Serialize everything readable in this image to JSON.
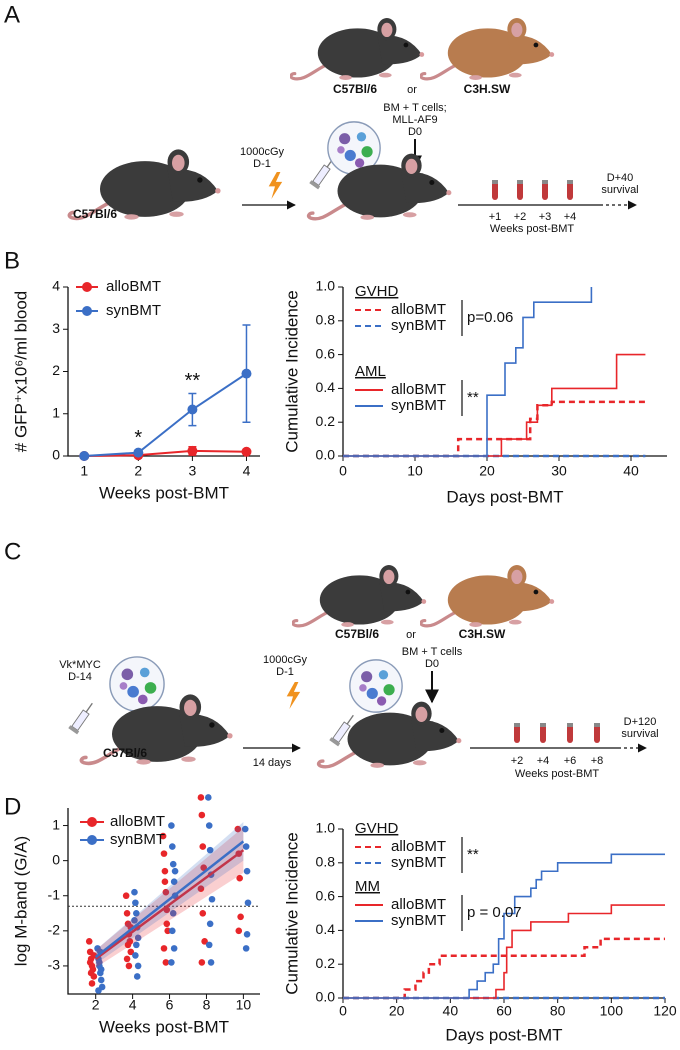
{
  "panel_labels": [
    "A",
    "B",
    "C",
    "D"
  ],
  "diagram_a": {
    "strains": [
      "C57Bl/6",
      "C3H.SW"
    ],
    "or": "or",
    "recipient": "C57Bl/6",
    "irradiation": [
      "1000cGy",
      "D-1"
    ],
    "transplant": [
      "BM + T cells;",
      "MLL-AF9",
      "D0"
    ],
    "timepoints": [
      "+1",
      "+2",
      "+3",
      "+4"
    ],
    "timeline_label": "Weeks post-BMT",
    "endpoint": [
      "D+40",
      "survival"
    ]
  },
  "diagram_c": {
    "strains": [
      "C57Bl/6",
      "C3H.SW"
    ],
    "or": "or",
    "inoculum": [
      "Vk*MYC",
      "D-14"
    ],
    "recipient": "C57Bl/6",
    "interval": "14 days",
    "irradiation": [
      "1000cGy",
      "D-1"
    ],
    "transplant": [
      "BM + T cells",
      "D0"
    ],
    "timepoints": [
      "+2",
      "+4",
      "+6",
      "+8"
    ],
    "timeline_label": "Weeks post-BMT",
    "endpoint": [
      "D+120",
      "survival"
    ]
  },
  "chart_data": [
    {
      "type": "line",
      "ylabel": "# GFP⁺x10⁶/ml blood",
      "xlabel": "Weeks post-BMT",
      "x": [
        1,
        2,
        3,
        4
      ],
      "xlim": [
        0.7,
        4.25
      ],
      "xticks": [
        1,
        2,
        3,
        4
      ],
      "ylim": [
        0,
        4
      ],
      "yticks": [
        0,
        1,
        2,
        3,
        4
      ],
      "legend": "upper left",
      "series": [
        {
          "name": "alloBMT",
          "color": "#e8262a",
          "values": [
            0,
            0.02,
            0.12,
            0.1
          ],
          "errors": [
            0,
            0.03,
            0.1,
            0.05
          ]
        },
        {
          "name": "synBMT",
          "color": "#3b6fc6",
          "values": [
            0,
            0.08,
            1.1,
            1.95
          ],
          "errors": [
            0,
            0.04,
            0.38,
            1.15
          ]
        }
      ],
      "annotations": [
        {
          "x": 2,
          "text": "*"
        },
        {
          "x": 3,
          "text": "**"
        }
      ]
    },
    {
      "type": "step",
      "ylabel": "Cumulative Incidence",
      "xlabel": "Days post-BMT",
      "xlim": [
        0,
        45
      ],
      "xticks": [
        0,
        10,
        20,
        30,
        40
      ],
      "ylim": [
        0,
        1
      ],
      "yticks": [
        {
          "value": 0,
          "label": "0.0"
        },
        0.2,
        0.4,
        0.6,
        0.8,
        {
          "value": 1,
          "label": "1.0"
        }
      ],
      "legend": "upper left",
      "groups": [
        {
          "title": "GVHD",
          "stat": "p=0.06",
          "series": [
            {
              "name": "alloBMT",
              "color": "#e8262a",
              "linestyle": "dashed",
              "x": [
                0,
                16,
                26,
                27,
                29,
                42
              ],
              "values": [
                0,
                0.1,
                0.22,
                0.3,
                0.32,
                0.32
              ]
            },
            {
              "name": "synBMT",
              "color": "#3b6fc6",
              "linestyle": "dashed",
              "x": [
                0,
                42
              ],
              "values": [
                0,
                0
              ]
            }
          ]
        },
        {
          "title": "AML",
          "stat": "**",
          "series": [
            {
              "name": "alloBMT",
              "color": "#e8262a",
              "linestyle": "solid",
              "x": [
                0,
                22,
                25.5,
                27,
                29,
                38,
                42
              ],
              "values": [
                0,
                0.1,
                0.2,
                0.3,
                0.4,
                0.6,
                0.6
              ]
            },
            {
              "name": "synBMT",
              "color": "#3b6fc6",
              "linestyle": "solid",
              "x": [
                0,
                20,
                22.5,
                24,
                25,
                26.5,
                34.5
              ],
              "values": [
                0,
                0.36,
                0.55,
                0.64,
                0.82,
                0.91,
                1.0
              ]
            }
          ]
        }
      ]
    },
    {
      "type": "scatter",
      "ylabel": "log M-band (G/A)",
      "xlabel": "Weeks post-BMT",
      "xlim": [
        0.5,
        10.9
      ],
      "xticks": [
        2,
        4,
        6,
        8,
        10
      ],
      "ylim": [
        -3.8,
        1.5
      ],
      "yticks": [
        -3,
        -2,
        -1,
        0,
        1
      ],
      "threshold": -1.3,
      "legend": "upper left",
      "series": [
        {
          "name": "alloBMT",
          "color": "#e8262a",
          "x": [
            1.65,
            1.7,
            1.75,
            1.8,
            1.85,
            1.9,
            1.7,
            1.8,
            1.9,
            1.75,
            3.65,
            3.7,
            3.75,
            3.8,
            3.85,
            3.9,
            3.7,
            3.8,
            3.9,
            3.75,
            5.65,
            5.7,
            5.75,
            5.8,
            5.85,
            5.9,
            5.7,
            5.8,
            5.75,
            5.85,
            7.7,
            7.75,
            7.8,
            7.85,
            7.7,
            7.8,
            7.9,
            7.75,
            9.7,
            9.75,
            9.8,
            9.85,
            9.75
          ],
          "values": [
            -2.3,
            -2.6,
            -2.8,
            -3.0,
            -3.1,
            -3.3,
            -2.9,
            -3.5,
            -2.7,
            -3.2,
            -1.0,
            -1.5,
            -1.8,
            -2.1,
            -2.3,
            -2.6,
            -2.8,
            -3.0,
            -1.9,
            -2.4,
            0.7,
            0.2,
            -0.3,
            -0.9,
            -1.4,
            -2.0,
            -2.5,
            -2.9,
            -0.6,
            -1.8,
            1.8,
            1.3,
            0.4,
            -0.2,
            -0.8,
            -1.5,
            -2.3,
            -2.9,
            0.9,
            0.2,
            -0.5,
            -1.6,
            -2.0
          ],
          "fit": {
            "x": [
              2,
              10
            ],
            "values": [
              -2.8,
              0.3
            ],
            "ci_low": [
              -3.05,
              -0.35
            ],
            "ci_high": [
              -2.55,
              0.95
            ]
          }
        },
        {
          "name": "synBMT",
          "color": "#3b6fc6",
          "x": [
            2.1,
            2.15,
            2.2,
            2.25,
            2.3,
            2.35,
            2.2,
            2.3,
            2.15,
            2.25,
            4.1,
            4.15,
            4.2,
            4.25,
            4.3,
            4.2,
            4.15,
            4.3,
            4.25,
            4.1,
            6.1,
            6.15,
            6.2,
            6.25,
            6.3,
            6.2,
            6.15,
            6.25,
            6.1,
            6.3,
            8.1,
            8.15,
            8.2,
            8.25,
            8.3,
            8.2,
            8.15,
            8.25,
            10.1,
            10.15,
            10.2,
            10.25,
            10.2,
            10.15
          ],
          "values": [
            -2.5,
            -2.8,
            -3.0,
            -3.2,
            -3.4,
            -3.6,
            -2.9,
            -3.1,
            -3.7,
            -2.6,
            -0.9,
            -1.2,
            -1.5,
            -1.9,
            -2.2,
            -2.4,
            -2.7,
            -3.0,
            -3.3,
            -1.7,
            1.0,
            0.4,
            -0.1,
            -0.6,
            -1.0,
            -1.5,
            -2.0,
            -2.5,
            -2.9,
            -0.3,
            1.8,
            1.0,
            0.3,
            -0.4,
            -1.1,
            -1.8,
            -2.4,
            -2.9,
            0.9,
            0.4,
            -0.3,
            -1.2,
            -2.1,
            -2.5
          ],
          "fit": {
            "x": [
              2,
              10
            ],
            "values": [
              -2.75,
              0.55
            ],
            "ci_low": [
              -2.95,
              0.0
            ],
            "ci_high": [
              -2.55,
              1.1
            ]
          }
        }
      ]
    },
    {
      "type": "step",
      "ylabel": "Cumulative Incidence",
      "xlabel": "Days post-BMT",
      "xlim": [
        0,
        120
      ],
      "xticks": [
        0,
        20,
        40,
        60,
        80,
        100,
        120
      ],
      "ylim": [
        0,
        1
      ],
      "yticks": [
        {
          "value": 0,
          "label": "0.0"
        },
        0.2,
        0.4,
        0.6,
        0.8,
        {
          "value": 1,
          "label": "1.0"
        }
      ],
      "legend": "upper left",
      "groups": [
        {
          "title": "GVHD",
          "stat": "**",
          "series": [
            {
              "name": "alloBMT",
              "color": "#e8262a",
              "linestyle": "dashed",
              "x": [
                0,
                23,
                27,
                30,
                32,
                36,
                90,
                96,
                120
              ],
              "values": [
                0,
                0.05,
                0.1,
                0.15,
                0.2,
                0.25,
                0.3,
                0.35,
                0.35
              ]
            },
            {
              "name": "synBMT",
              "color": "#3b6fc6",
              "linestyle": "dashed",
              "x": [
                0,
                120
              ],
              "values": [
                0,
                0
              ]
            }
          ]
        },
        {
          "title": "MM",
          "stat": "p = 0.07",
          "series": [
            {
              "name": "alloBMT",
              "color": "#e8262a",
              "linestyle": "solid",
              "x": [
                0,
                57,
                60,
                61,
                63,
                70,
                84,
                100,
                120
              ],
              "values": [
                0,
                0.05,
                0.15,
                0.3,
                0.4,
                0.45,
                0.5,
                0.55,
                0.55
              ]
            },
            {
              "name": "synBMT",
              "color": "#3b6fc6",
              "linestyle": "solid",
              "x": [
                0,
                47,
                50,
                53,
                56,
                58,
                60,
                64,
                70,
                72,
                74,
                80,
                100,
                120
              ],
              "values": [
                0,
                0.05,
                0.1,
                0.15,
                0.2,
                0.35,
                0.5,
                0.6,
                0.65,
                0.7,
                0.75,
                0.8,
                0.85,
                0.85
              ]
            }
          ]
        }
      ]
    }
  ]
}
